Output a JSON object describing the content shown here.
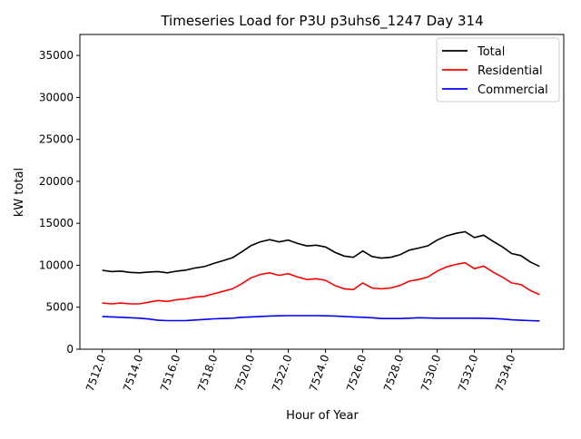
{
  "chart_data": {
    "type": "line",
    "title": "Timeseries Load for P3U p3uhs6_1247  Day 314",
    "xlabel": "Hour of Year",
    "ylabel": "kW total",
    "xlim": [
      7510.8,
      7536.8
    ],
    "ylim": [
      0,
      37500
    ],
    "xticks": [
      7512,
      7514,
      7516,
      7518,
      7520,
      7522,
      7524,
      7526,
      7528,
      7530,
      7532,
      7534
    ],
    "xtick_labels": [
      "7512.0",
      "7514.0",
      "7516.0",
      "7518.0",
      "7520.0",
      "7522.0",
      "7524.0",
      "7526.0",
      "7528.0",
      "7530.0",
      "7532.0",
      "7534.0"
    ],
    "yticks": [
      0,
      5000,
      10000,
      15000,
      20000,
      25000,
      30000,
      35000
    ],
    "ytick_labels": [
      "0",
      "5000",
      "10000",
      "15000",
      "20000",
      "25000",
      "30000",
      "35000"
    ],
    "grid": false,
    "legend_position": "top-right",
    "x_start": 7512,
    "x_step": 0.5,
    "series": [
      {
        "name": "Total",
        "color": "#000000",
        "values": [
          9400,
          9250,
          9300,
          9150,
          9100,
          9200,
          9250,
          9100,
          9300,
          9420,
          9680,
          9850,
          10220,
          10550,
          10900,
          11600,
          12350,
          12800,
          13050,
          12780,
          13000,
          12600,
          12300,
          12400,
          12180,
          11550,
          11100,
          10950,
          11700,
          11050,
          10850,
          10950,
          11250,
          11800,
          12050,
          12320,
          13000,
          13500,
          13800,
          14000,
          13300,
          13580,
          12850,
          12200,
          11400,
          11150,
          10400,
          9870
        ]
      },
      {
        "name": "Residential",
        "color": "#ff0000",
        "values": [
          5500,
          5400,
          5500,
          5400,
          5400,
          5600,
          5800,
          5700,
          5900,
          6000,
          6200,
          6300,
          6600,
          6900,
          7200,
          7800,
          8500,
          8900,
          9100,
          8800,
          9000,
          8600,
          8300,
          8400,
          8200,
          7600,
          7200,
          7100,
          7900,
          7300,
          7200,
          7300,
          7600,
          8100,
          8300,
          8600,
          9300,
          9800,
          10100,
          10300,
          9600,
          9900,
          9200,
          8600,
          7900,
          7700,
          7000,
          6500
        ]
      },
      {
        "name": "Commercial",
        "color": "#0000ff",
        "values": [
          3900,
          3850,
          3800,
          3750,
          3700,
          3600,
          3450,
          3400,
          3400,
          3420,
          3480,
          3550,
          3620,
          3650,
          3700,
          3800,
          3850,
          3900,
          3950,
          3980,
          4000,
          4000,
          4000,
          4000,
          3980,
          3950,
          3900,
          3850,
          3800,
          3750,
          3650,
          3650,
          3650,
          3700,
          3750,
          3720,
          3700,
          3700,
          3700,
          3700,
          3700,
          3680,
          3650,
          3600,
          3500,
          3450,
          3400,
          3370
        ]
      }
    ]
  }
}
